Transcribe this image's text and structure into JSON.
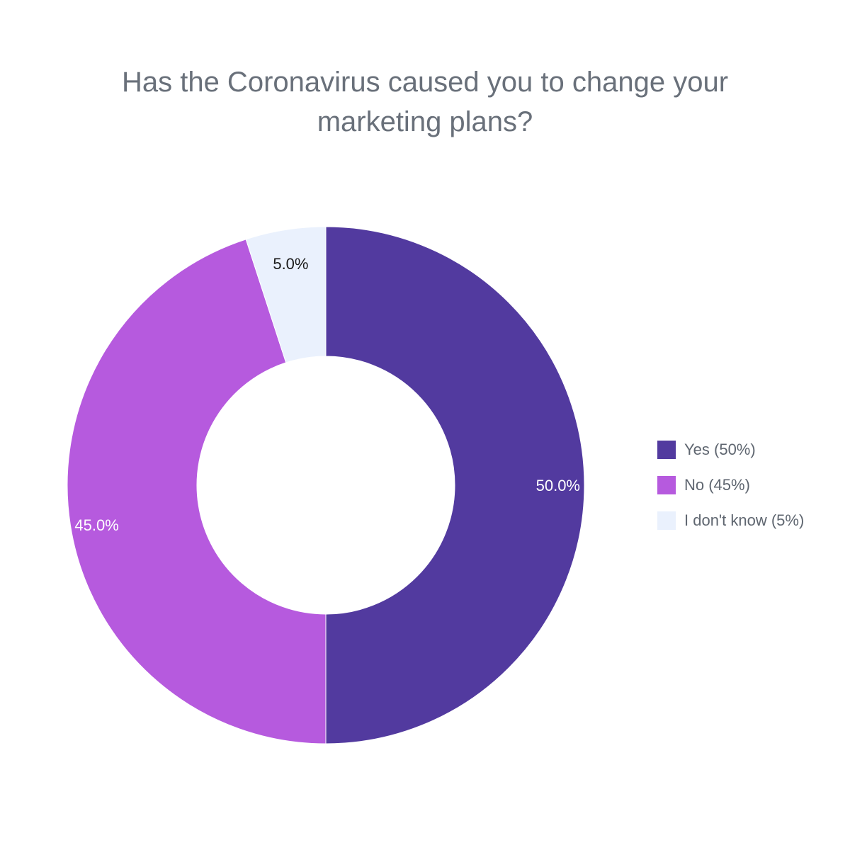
{
  "chart_data": {
    "type": "pie",
    "donut": true,
    "title": [
      "Has the Coronavirus caused you to change your",
      "marketing plans?"
    ],
    "slices": [
      {
        "label": "Yes (50%)",
        "value": 50.0,
        "value_label": "50.0%",
        "color": "#523a9f",
        "label_color": "#ffffff"
      },
      {
        "label": "No (45%)",
        "value": 45.0,
        "value_label": "45.0%",
        "color": "#b65ade",
        "label_color": "#ffffff"
      },
      {
        "label": "I don't know (5%)",
        "value": 5.0,
        "value_label": "5.0%",
        "color": "#eaf1fd",
        "label_color": "#1a1a1a"
      }
    ],
    "legend_position": "right"
  }
}
